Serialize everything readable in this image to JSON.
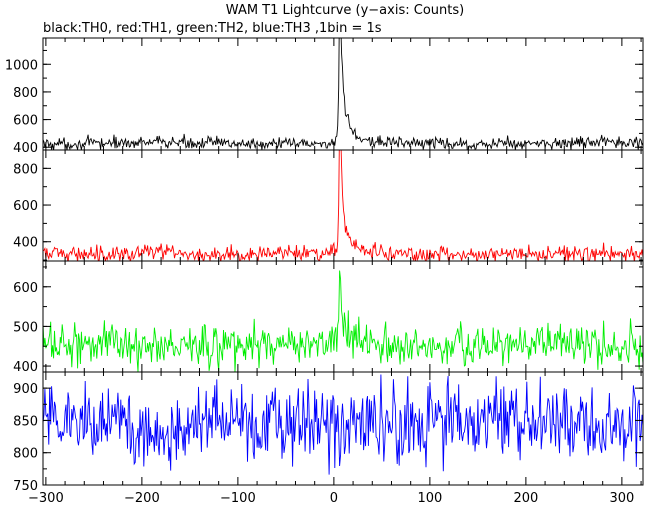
{
  "chart_data": {
    "type": "line",
    "title": "WAM T1 Lightcurve (y−axis: Counts)",
    "subtitle": "black:TH0, red:TH1, green:TH2, blue:TH3 ,1bin = 1s",
    "xlabel": "",
    "ylabel": "",
    "xlim": [
      -303,
      322
    ],
    "x_ticks": [
      -300,
      -200,
      -100,
      0,
      100,
      200,
      300
    ],
    "x_tick_labels": [
      "−300",
      "−200",
      "−100",
      "0",
      "100",
      "200",
      "300"
    ],
    "bin_seconds": 1,
    "grid": false,
    "panels": [
      {
        "name": "TH0",
        "color": "#000000",
        "ylim": [
          380,
          1190
        ],
        "y_ticks": [
          400,
          600,
          800,
          1000
        ],
        "profile": {
          "baseline": 430,
          "noise": 22,
          "peak_time": 6,
          "peak_height": 720,
          "peak_secondary": 380
        }
      },
      {
        "name": "TH1",
        "color": "#ff0000",
        "ylim": [
          295,
          900
        ],
        "y_ticks": [
          400,
          600,
          800
        ],
        "profile": {
          "baseline": 335,
          "noise": 22,
          "peak_time": 6,
          "peak_height": 560,
          "peak_secondary": 240
        }
      },
      {
        "name": "TH2",
        "color": "#00ee00",
        "ylim": [
          385,
          665
        ],
        "y_ticks": [
          400,
          500,
          600
        ],
        "profile": {
          "baseline": 453,
          "noise": 26,
          "peak_time": 6,
          "peak_height": 180,
          "peak_secondary": 60
        }
      },
      {
        "name": "TH3",
        "color": "#0000ff",
        "ylim": [
          750,
          925
        ],
        "y_ticks": [
          750,
          800,
          850,
          900
        ],
        "profile": {
          "baseline": 845,
          "noise": 30,
          "peak_time": 6,
          "peak_height": 0,
          "peak_secondary": 0
        }
      }
    ]
  }
}
